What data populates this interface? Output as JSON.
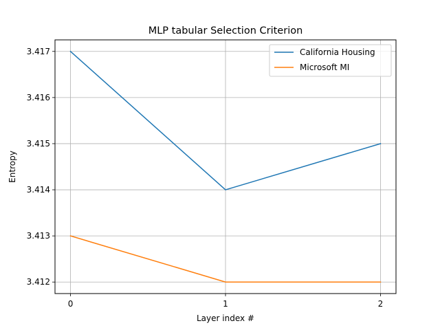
{
  "chart_data": {
    "type": "line",
    "title": "MLP tabular Selection Criterion",
    "xlabel": "Layer index #",
    "ylabel": "Entropy",
    "x": [
      0,
      1,
      2
    ],
    "xticks": [
      "0",
      "1",
      "2"
    ],
    "xlim": [
      -0.1,
      2.1
    ],
    "yticks": [
      "3.412",
      "3.413",
      "3.414",
      "3.415",
      "3.416",
      "3.417"
    ],
    "ylim": [
      3.41175,
      3.41725
    ],
    "grid": true,
    "legend_position": "top-right",
    "series": [
      {
        "name": "California Housing",
        "values": [
          3.417,
          3.414,
          3.415
        ],
        "color": "#1f77b4"
      },
      {
        "name": "Microsoft MI",
        "values": [
          3.413,
          3.412,
          3.412
        ],
        "color": "#ff7f0e"
      }
    ]
  }
}
